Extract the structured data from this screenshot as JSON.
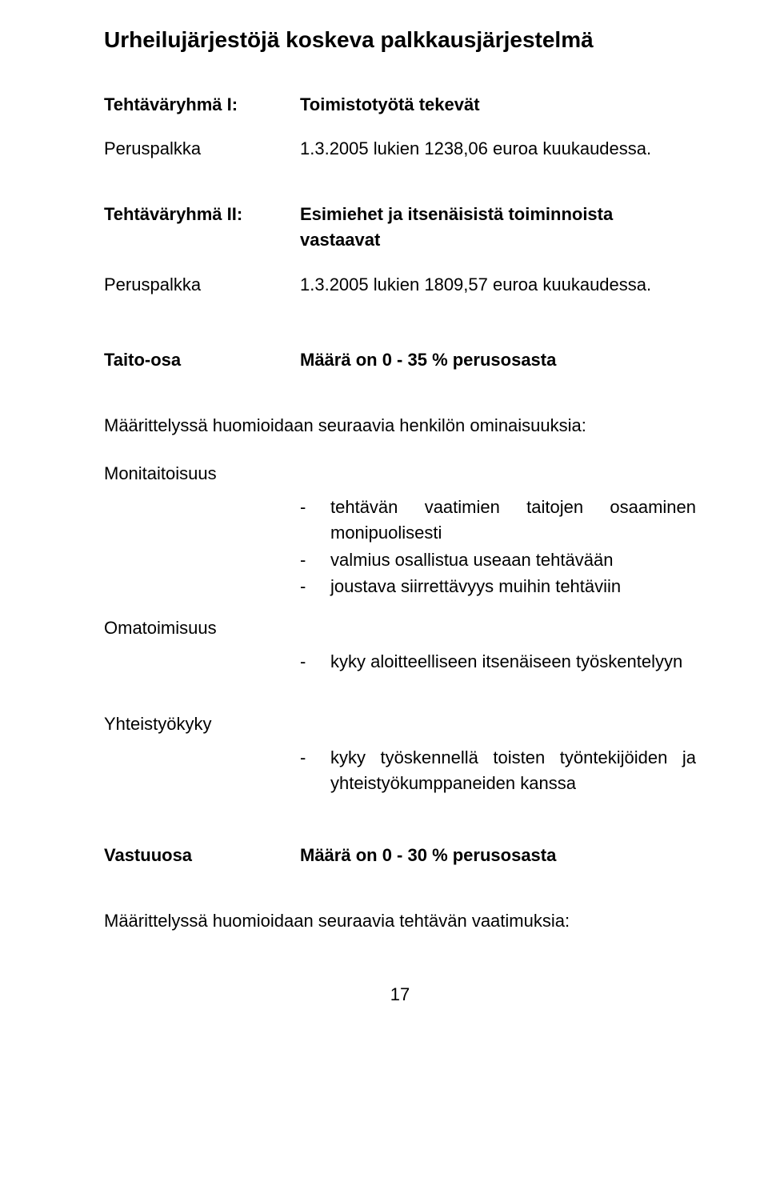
{
  "title": "Urheilujärjestöjä koskeva palkkausjärjestelmä",
  "group1": {
    "label": "Tehtäväryhmä I:",
    "value": "Toimistotyötä tekevät"
  },
  "base1": {
    "label": "Peruspalkka",
    "value": "1.3.2005 lukien 1238,06 euroa kuukaudessa."
  },
  "group2": {
    "label": "Tehtäväryhmä II:",
    "value": "Esimiehet ja itsenäisistä toiminnoista vastaavat"
  },
  "base2": {
    "label": "Peruspalkka",
    "value": "1.3.2005 lukien 1809,57 euroa kuukaudessa."
  },
  "taito": {
    "label": "Taito-osa",
    "value": "Määrä on 0 - 35 % perusosasta"
  },
  "maar_intro": "Määrittelyssä huomioidaan seuraavia henkilön ominaisuuksia:",
  "moni": {
    "label": "Monitaitoisuus",
    "items": [
      "tehtävän vaatimien taitojen osaaminen monipuolisesti",
      "valmius osallistua useaan tehtävään",
      "joustava siirrettävyys muihin tehtäviin"
    ]
  },
  "oma": {
    "label": "Omatoimisuus",
    "items": [
      "kyky aloitteelliseen itsenäiseen työskentelyyn"
    ]
  },
  "yht": {
    "label": "Yhteistyökyky",
    "items": [
      "kyky työskennellä toisten työntekijöiden ja yhteistyökumppaneiden kanssa"
    ]
  },
  "vastuu": {
    "label": "Vastuuosa",
    "value": "Määrä on 0 - 30 % perusosasta"
  },
  "maar_outro": "Määrittelyssä huomioidaan seuraavia tehtävän vaatimuksia:",
  "page_num": "17"
}
